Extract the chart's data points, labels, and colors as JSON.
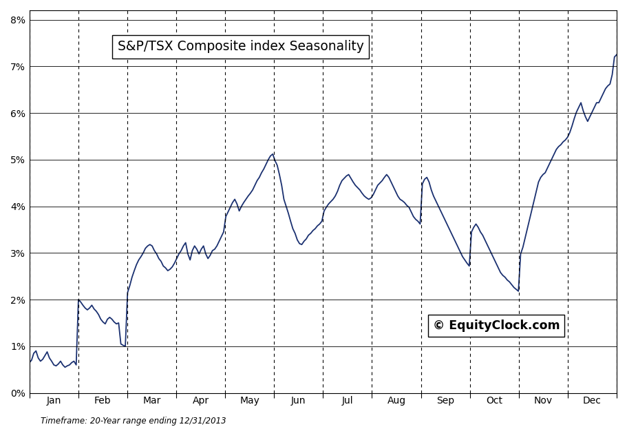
{
  "title": "S&P/TSX Composite index Seasonality",
  "watermark": "© EquityClock.com",
  "footnote": "Timeframe: 20-Year range ending 12/31/2013",
  "line_color": "#1a3070",
  "bg_color": "#ffffff",
  "grid_color": "#000000",
  "ylim": [
    0.0,
    0.082
  ],
  "yticks": [
    0.0,
    0.01,
    0.02,
    0.03,
    0.04,
    0.05,
    0.06,
    0.07,
    0.08
  ],
  "months": [
    "Jan",
    "Feb",
    "Mar",
    "Apr",
    "May",
    "Jun",
    "Jul",
    "Aug",
    "Sep",
    "Oct",
    "Nov",
    "Dec"
  ],
  "seasonality": [
    0.0065,
    0.007,
    0.0085,
    0.009,
    0.0075,
    0.0068,
    0.0072,
    0.008,
    0.0088,
    0.0075,
    0.0068,
    0.006,
    0.0058,
    0.0062,
    0.0068,
    0.006,
    0.0055,
    0.0058,
    0.006,
    0.0065,
    0.0068,
    0.006,
    0.02,
    0.0195,
    0.0188,
    0.0182,
    0.0178,
    0.0182,
    0.0188,
    0.018,
    0.0175,
    0.0168,
    0.0158,
    0.0152,
    0.0148,
    0.0158,
    0.0162,
    0.0158,
    0.0152,
    0.0148,
    0.015,
    0.0105,
    0.0102,
    0.01,
    0.0215,
    0.023,
    0.0248,
    0.0262,
    0.0275,
    0.0285,
    0.0292,
    0.03,
    0.031,
    0.0315,
    0.0318,
    0.0315,
    0.0305,
    0.0298,
    0.0288,
    0.0282,
    0.0272,
    0.0268,
    0.0262,
    0.0265,
    0.027,
    0.0278,
    0.0288,
    0.0298,
    0.0305,
    0.0315,
    0.0322,
    0.0298,
    0.0285,
    0.0305,
    0.0315,
    0.0308,
    0.0298,
    0.0308,
    0.0315,
    0.0298,
    0.0288,
    0.0295,
    0.0305,
    0.0308,
    0.0315,
    0.0325,
    0.0335,
    0.0345,
    0.0378,
    0.0388,
    0.0398,
    0.0408,
    0.0415,
    0.0405,
    0.039,
    0.04,
    0.0408,
    0.0415,
    0.0422,
    0.0428,
    0.0435,
    0.0445,
    0.0455,
    0.0462,
    0.0472,
    0.048,
    0.049,
    0.05,
    0.0508,
    0.0512,
    0.0498,
    0.0488,
    0.0468,
    0.0445,
    0.0415,
    0.04,
    0.0385,
    0.0368,
    0.0352,
    0.0342,
    0.0328,
    0.032,
    0.0318,
    0.0325,
    0.033,
    0.0338,
    0.0342,
    0.0348,
    0.0352,
    0.0358,
    0.0362,
    0.0368,
    0.039,
    0.0398,
    0.0405,
    0.041,
    0.0415,
    0.0422,
    0.0432,
    0.0445,
    0.0455,
    0.046,
    0.0465,
    0.0468,
    0.046,
    0.0452,
    0.0445,
    0.044,
    0.0435,
    0.0428,
    0.0422,
    0.0418,
    0.0415,
    0.0418,
    0.0425,
    0.0435,
    0.0445,
    0.045,
    0.0455,
    0.0462,
    0.0468,
    0.0462,
    0.0452,
    0.0442,
    0.0432,
    0.0422,
    0.0415,
    0.0412,
    0.0408,
    0.0402,
    0.0398,
    0.0388,
    0.0378,
    0.0372,
    0.0368,
    0.0362,
    0.0448,
    0.0458,
    0.0462,
    0.0452,
    0.0435,
    0.0422,
    0.0412,
    0.0402,
    0.0392,
    0.0382,
    0.0372,
    0.0362,
    0.0352,
    0.0342,
    0.0332,
    0.0322,
    0.0312,
    0.0302,
    0.0292,
    0.0285,
    0.0278,
    0.0272,
    0.0345,
    0.0355,
    0.0362,
    0.0355,
    0.0345,
    0.0338,
    0.0328,
    0.0318,
    0.0308,
    0.0298,
    0.0288,
    0.0278,
    0.0268,
    0.0258,
    0.0252,
    0.0248,
    0.0242,
    0.0238,
    0.0232,
    0.0226,
    0.0222,
    0.0218,
    0.0298,
    0.0312,
    0.0332,
    0.0352,
    0.0372,
    0.0392,
    0.0412,
    0.0432,
    0.0452,
    0.0462,
    0.0468,
    0.0472,
    0.0482,
    0.0492,
    0.0502,
    0.0512,
    0.0522,
    0.0528,
    0.0532,
    0.0538,
    0.0542,
    0.0548,
    0.0558,
    0.0572,
    0.0588,
    0.0602,
    0.0612,
    0.0622,
    0.0605,
    0.0592,
    0.0582,
    0.0592,
    0.0602,
    0.0612,
    0.0622,
    0.0622,
    0.0632,
    0.0642,
    0.0652,
    0.0658,
    0.0662,
    0.0682,
    0.072,
    0.0725
  ]
}
